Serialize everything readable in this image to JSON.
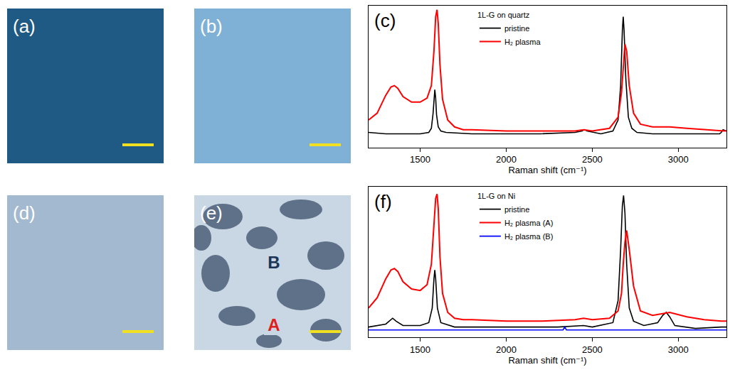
{
  "images": [
    {
      "panel_label": "(a)"
    },
    {
      "panel_label": "(b)"
    },
    {
      "panel_label": "(d)"
    },
    {
      "panel_label": "(e)",
      "markers": [
        "B",
        "A"
      ]
    }
  ],
  "chart_data": [
    {
      "type": "line",
      "panel_label": "(c)",
      "legend_title": "1L-G on quartz",
      "x_label": "Raman shift (cm⁻¹)",
      "xlim": [
        1200,
        3280
      ],
      "xticks": [
        1500,
        2000,
        2500,
        3000
      ],
      "ylim": [
        0,
        1.03
      ],
      "yticks": [],
      "tick_labels": "x",
      "grid": false,
      "legend": "top",
      "series": [
        {
          "name": "pristine",
          "color": "#000000",
          "x": [
            1200,
            1300,
            1400,
            1500,
            1550,
            1565,
            1575,
            1580,
            1585,
            1590,
            1595,
            1605,
            1620,
            1650,
            1800,
            2000,
            2200,
            2400,
            2440,
            2455,
            2470,
            2550,
            2620,
            2650,
            2665,
            2675,
            2680,
            2685,
            2695,
            2710,
            2730,
            2760,
            2850,
            3000,
            3100,
            3200,
            3240,
            3250,
            3260,
            3280
          ],
          "values": [
            0.11,
            0.1,
            0.1,
            0.1,
            0.11,
            0.14,
            0.25,
            0.36,
            0.42,
            0.36,
            0.24,
            0.15,
            0.12,
            0.11,
            0.1,
            0.1,
            0.1,
            0.11,
            0.12,
            0.13,
            0.12,
            0.1,
            0.12,
            0.2,
            0.45,
            0.85,
            0.95,
            0.85,
            0.5,
            0.22,
            0.14,
            0.11,
            0.1,
            0.1,
            0.1,
            0.1,
            0.1,
            0.11,
            0.13,
            0.12
          ]
        },
        {
          "name": "H₂ plasma",
          "color": "#ff0000",
          "x": [
            1200,
            1250,
            1300,
            1330,
            1350,
            1370,
            1400,
            1450,
            1500,
            1540,
            1565,
            1580,
            1590,
            1598,
            1605,
            1615,
            1630,
            1660,
            1700,
            1750,
            1800,
            2000,
            2200,
            2400,
            2450,
            2500,
            2600,
            2650,
            2670,
            2680,
            2690,
            2700,
            2715,
            2740,
            2780,
            2850,
            2950,
            3050,
            3150,
            3250,
            3280
          ],
          "values": [
            0.2,
            0.25,
            0.38,
            0.44,
            0.45,
            0.43,
            0.37,
            0.33,
            0.33,
            0.36,
            0.45,
            0.7,
            0.95,
            1.0,
            0.9,
            0.6,
            0.35,
            0.2,
            0.15,
            0.13,
            0.13,
            0.12,
            0.12,
            0.12,
            0.13,
            0.12,
            0.14,
            0.22,
            0.4,
            0.6,
            0.75,
            0.7,
            0.45,
            0.25,
            0.17,
            0.15,
            0.15,
            0.14,
            0.13,
            0.12,
            0.12
          ]
        }
      ]
    },
    {
      "type": "line",
      "panel_label": "(f)",
      "legend_title": "1L-G on Ni",
      "x_label": "Raman shift (cm⁻¹)",
      "xlim": [
        1200,
        3280
      ],
      "xticks": [
        1500,
        2000,
        2500,
        3000
      ],
      "ylim": [
        0,
        1.03
      ],
      "yticks": [],
      "tick_labels": "x",
      "grid": false,
      "legend": "top",
      "series": [
        {
          "name": "pristine",
          "color": "#000000",
          "x": [
            1200,
            1300,
            1340,
            1360,
            1400,
            1500,
            1550,
            1570,
            1580,
            1585,
            1590,
            1600,
            1620,
            1700,
            2000,
            2300,
            2450,
            2500,
            2620,
            2650,
            2665,
            2675,
            2682,
            2690,
            2700,
            2715,
            2740,
            2800,
            2880,
            2910,
            2930,
            2950,
            2980,
            3100,
            3250,
            3280
          ],
          "values": [
            0.07,
            0.09,
            0.13,
            0.11,
            0.08,
            0.08,
            0.1,
            0.2,
            0.4,
            0.46,
            0.4,
            0.2,
            0.1,
            0.07,
            0.07,
            0.07,
            0.08,
            0.07,
            0.1,
            0.25,
            0.6,
            0.9,
            0.97,
            0.85,
            0.5,
            0.2,
            0.11,
            0.08,
            0.1,
            0.15,
            0.17,
            0.14,
            0.08,
            0.06,
            0.07,
            0.07
          ]
        },
        {
          "name": "H₂ plasma (A)",
          "color": "#ff0000",
          "x": [
            1200,
            1250,
            1300,
            1330,
            1350,
            1370,
            1400,
            1450,
            1500,
            1540,
            1565,
            1580,
            1590,
            1598,
            1605,
            1615,
            1630,
            1660,
            1700,
            1750,
            1800,
            2000,
            2200,
            2400,
            2450,
            2500,
            2600,
            2650,
            2670,
            2680,
            2690,
            2700,
            2715,
            2740,
            2780,
            2850,
            2950,
            3050,
            3150,
            3250,
            3280
          ],
          "values": [
            0.2,
            0.27,
            0.4,
            0.46,
            0.47,
            0.45,
            0.38,
            0.33,
            0.32,
            0.36,
            0.5,
            0.75,
            0.95,
            0.98,
            0.88,
            0.55,
            0.3,
            0.17,
            0.13,
            0.12,
            0.12,
            0.11,
            0.11,
            0.12,
            0.13,
            0.12,
            0.13,
            0.18,
            0.3,
            0.5,
            0.65,
            0.73,
            0.6,
            0.35,
            0.18,
            0.15,
            0.17,
            0.14,
            0.12,
            0.11,
            0.11
          ]
        },
        {
          "name": "H₂ plasma (B)",
          "color": "#0000ff",
          "x": [
            1200,
            1500,
            1800,
            2100,
            2330,
            2340,
            2350,
            2600,
            2900,
            3280
          ],
          "values": [
            0.05,
            0.05,
            0.05,
            0.05,
            0.05,
            0.07,
            0.05,
            0.05,
            0.05,
            0.05
          ]
        }
      ]
    }
  ]
}
